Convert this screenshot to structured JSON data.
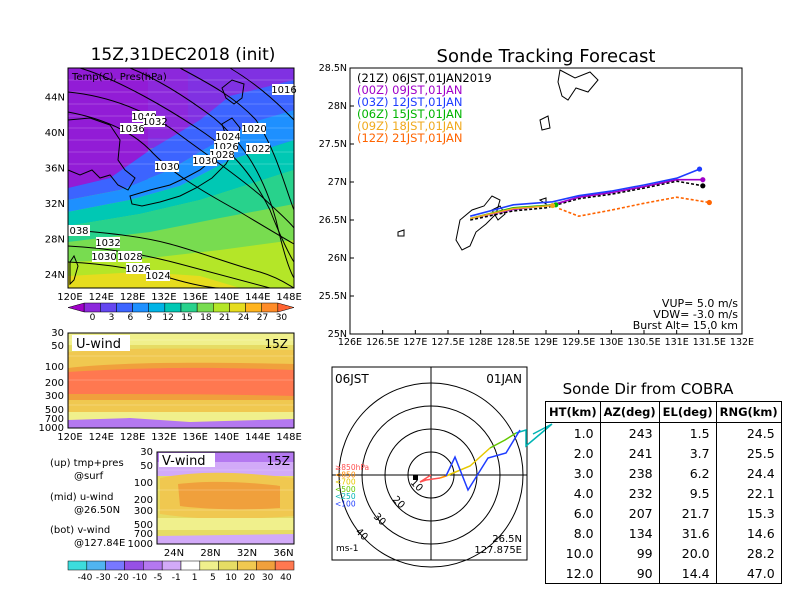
{
  "map_panel": {
    "title": "15Z,31DEC2018 (init)",
    "label": "Temp(C), Pres(hPa)",
    "lon_ticks": [
      "120E",
      "124E",
      "128E",
      "132E",
      "136E",
      "140E",
      "144E",
      "148E"
    ],
    "lat_ticks": [
      "24N",
      "28N",
      "32N",
      "36N",
      "40N",
      "44N"
    ],
    "isobar_labels": [
      "1016",
      "1040",
      "1032",
      "1036",
      "1024",
      "1020",
      "1026",
      "1028",
      "1022",
      "1030",
      "1030",
      "038",
      "1032",
      "1030",
      "1028",
      "1026",
      "1024"
    ],
    "colorbar_ticks": [
      "0",
      "3",
      "6",
      "9",
      "12",
      "15",
      "18",
      "21",
      "24",
      "27",
      "30"
    ]
  },
  "uwind_panel": {
    "label": "U-wind",
    "time": "15Z",
    "p_ticks": [
      "30",
      "50",
      "100",
      "200",
      "300",
      "500",
      "700",
      "1000"
    ],
    "lon_ticks": [
      "120E",
      "124E",
      "128E",
      "132E",
      "136E",
      "140E",
      "144E",
      "148E"
    ]
  },
  "vwind_panel": {
    "label": "V-wind",
    "time": "15Z",
    "p_ticks": [
      "30",
      "50",
      "100",
      "200",
      "300",
      "500",
      "700",
      "1000"
    ],
    "lat_ticks": [
      "24N",
      "28N",
      "32N",
      "36N"
    ],
    "colorbar_ticks": [
      "-40",
      "-30",
      "-20",
      "-10",
      "-5",
      "-1",
      "1",
      "5",
      "10",
      "20",
      "30",
      "40"
    ]
  },
  "notes": {
    "up": "(up) tmp+pres",
    "up2": "@surf",
    "mid": "(mid) u-wind",
    "mid2": "@26.50N",
    "bot": "(bot) v-wind",
    "bot2": "@127.84E"
  },
  "tracking": {
    "title": "Sonde Tracking Forecast",
    "lat_ticks": [
      "25N",
      "25.5N",
      "26N",
      "26.5N",
      "27N",
      "27.5N",
      "28N",
      "28.5N"
    ],
    "lon_ticks": [
      "126E",
      "126.5E",
      "127E",
      "127.5E",
      "128E",
      "128.5E",
      "129E",
      "129.5E",
      "130E",
      "130.5E",
      "131E",
      "131.5E",
      "132E"
    ],
    "legend": [
      {
        "label": "(21Z)  06JST,01JAN2019",
        "color": "#000000"
      },
      {
        "label": "(00Z)  09JST,01JAN",
        "color": "#a000c8"
      },
      {
        "label": "(03Z)  12JST,01JAN",
        "color": "#1e3cff"
      },
      {
        "label": "(06Z)  15JST,01JAN",
        "color": "#00b400"
      },
      {
        "label": "(09Z)  18JST,01JAN",
        "color": "#f0aa1e"
      },
      {
        "label": "(12Z)  21JST,01JAN",
        "color": "#ff6400"
      }
    ],
    "params": [
      "VUP=  5.0  m/s",
      "VDW= -3.0  m/s",
      "Burst Alt=  15.0  km"
    ]
  },
  "hodograph": {
    "time_label": "06JST",
    "date_label": "01JAN",
    "ring_labels": [
      "10",
      "20",
      "30",
      "40"
    ],
    "unit": "ms-1",
    "location_lat": "26.5N",
    "location_lon": "127.875E",
    "levels": [
      {
        "label": "≥850hPa",
        "color": "#ff5050"
      },
      {
        "label": "<850",
        "color": "#ff8c00"
      },
      {
        "label": "<700",
        "color": "#e6c800"
      },
      {
        "label": "<500",
        "color": "#64c800"
      },
      {
        "label": "<250",
        "color": "#00b4b4"
      },
      {
        "label": "<100",
        "color": "#1e3cff"
      }
    ]
  },
  "cobra_table": {
    "title": "Sonde Dir from COBRA",
    "headers": [
      "HT(km)",
      "AZ(deg)",
      "EL(deg)",
      "RNG(km)"
    ],
    "rows": [
      [
        "1.0",
        "243",
        "1.5",
        "24.5"
      ],
      [
        "2.0",
        "241",
        "3.7",
        "25.5"
      ],
      [
        "3.0",
        "238",
        "6.2",
        "24.4"
      ],
      [
        "4.0",
        "232",
        "9.5",
        "22.1"
      ],
      [
        "6.0",
        "207",
        "21.7",
        "15.3"
      ],
      [
        "8.0",
        "134",
        "31.6",
        "14.6"
      ],
      [
        "10.0",
        "99",
        "20.0",
        "28.2"
      ],
      [
        "12.0",
        "90",
        "14.4",
        "47.0"
      ]
    ]
  },
  "chart_data": {
    "type": "line",
    "title": "Sonde Tracking Forecast",
    "xlabel": "",
    "ylabel": "",
    "xlim": [
      126,
      132
    ],
    "ylim": [
      25,
      28.5
    ],
    "series": [
      {
        "name": "(21Z) 06JST,01JAN2019",
        "color": "#000000",
        "x": [
          127.84,
          128.5,
          129.0,
          129.5,
          130.0,
          130.5,
          131.0,
          131.4
        ],
        "y": [
          26.5,
          26.62,
          26.66,
          26.78,
          26.84,
          26.92,
          27.01,
          26.95
        ]
      },
      {
        "name": "(00Z) 09JST,01JAN",
        "color": "#a000c8",
        "x": [
          127.84,
          128.5,
          129.1,
          129.5,
          130.0,
          130.5,
          131.0,
          131.4
        ],
        "y": [
          26.52,
          26.64,
          26.7,
          26.8,
          26.86,
          26.94,
          27.03,
          27.03
        ]
      },
      {
        "name": "(03Z) 12JST,01JAN",
        "color": "#1e3cff",
        "x": [
          127.84,
          128.5,
          129.1,
          129.5,
          130.0,
          130.5,
          131.0,
          131.35
        ],
        "y": [
          26.55,
          26.7,
          26.74,
          26.82,
          26.88,
          26.96,
          27.05,
          27.17
        ]
      },
      {
        "name": "(06Z) 15JST,01JAN",
        "color": "#00b400",
        "x": [
          127.84,
          128.5,
          129.15
        ],
        "y": [
          26.52,
          26.66,
          26.7
        ]
      },
      {
        "name": "(09Z) 18JST,01JAN",
        "color": "#f0aa1e",
        "x": [
          127.84,
          128.5,
          129.1
        ],
        "y": [
          26.52,
          26.65,
          26.69
        ]
      },
      {
        "name": "(12Z) 21JST,01JAN",
        "color": "#ff6400",
        "x": [
          129.2,
          129.5,
          130.0,
          130.5,
          131.0,
          131.5
        ],
        "y": [
          26.65,
          26.55,
          26.63,
          26.72,
          26.8,
          26.73
        ]
      }
    ]
  },
  "colors": {
    "temp_scale": [
      "#a000c8",
      "#8c28dc",
      "#6446f0",
      "#3c64ff",
      "#1e90ff",
      "#00b4e6",
      "#00c8b4",
      "#28d28c",
      "#78dc50",
      "#b4e628",
      "#e6dc1e",
      "#ffb41e",
      "#ff8c28",
      "#ff6432"
    ],
    "wind_scale": [
      "#3cdcdc",
      "#50b4f0",
      "#7878ff",
      "#9650e6",
      "#b478f0",
      "#d2aaf8",
      "#ffffff",
      "#f0f08c",
      "#e6dc64",
      "#f0c850",
      "#f0a03c",
      "#ff7850"
    ]
  }
}
